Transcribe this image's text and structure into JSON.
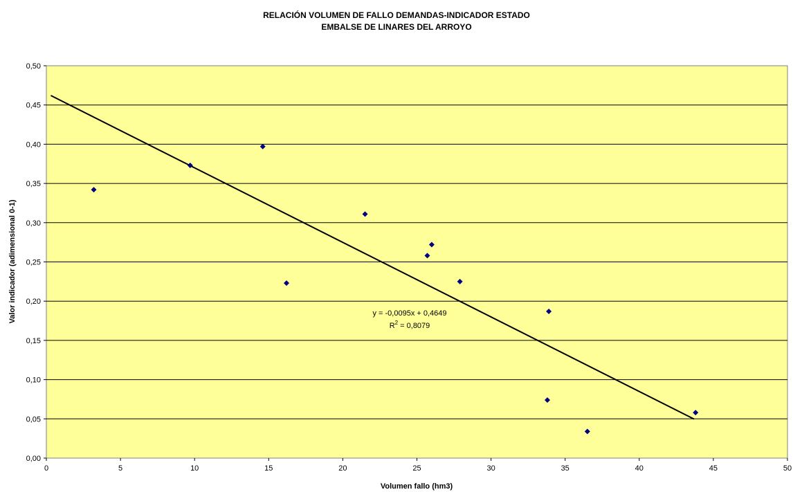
{
  "chart_data": {
    "type": "scatter",
    "title": "RELACIÓN VOLUMEN DE FALLO DEMANDAS-INDICADOR ESTADO",
    "subtitle": "EMBALSE DE LINARES DEL ARROYO",
    "xlabel": "Volumen fallo (hm3)",
    "ylabel": "Valor indicador (adimensional 0-1)",
    "xlim": [
      0,
      50
    ],
    "ylim": [
      0,
      0.5
    ],
    "x_ticks": [
      "0",
      "5",
      "10",
      "15",
      "20",
      "25",
      "30",
      "35",
      "40",
      "45",
      "50"
    ],
    "y_ticks": [
      "0,00",
      "0,05",
      "0,10",
      "0,15",
      "0,20",
      "0,25",
      "0,30",
      "0,35",
      "0,40",
      "0,45",
      "0,50"
    ],
    "grid": "horizontal",
    "series": [
      {
        "points": [
          {
            "x": 3.2,
            "y": 0.342
          },
          {
            "x": 9.7,
            "y": 0.373
          },
          {
            "x": 14.6,
            "y": 0.397
          },
          {
            "x": 16.2,
            "y": 0.223
          },
          {
            "x": 21.5,
            "y": 0.311
          },
          {
            "x": 25.7,
            "y": 0.258
          },
          {
            "x": 26.0,
            "y": 0.272
          },
          {
            "x": 27.9,
            "y": 0.225
          },
          {
            "x": 33.9,
            "y": 0.187
          },
          {
            "x": 33.8,
            "y": 0.074
          },
          {
            "x": 36.5,
            "y": 0.034
          },
          {
            "x": 43.8,
            "y": 0.058
          }
        ]
      }
    ],
    "trendline": {
      "slope": -0.0095,
      "intercept": 0.4649,
      "x_start": 0.3,
      "x_end": 43.7,
      "equation": "y = -0,0095x + 0,4649",
      "r2_label": "R",
      "r2_sup": "2",
      "r2_value": " = 0,8079"
    },
    "colors": {
      "plot_bg": "#FFFF99",
      "marker": "#000080",
      "trendline": "#000000",
      "grid": "#000000"
    }
  }
}
